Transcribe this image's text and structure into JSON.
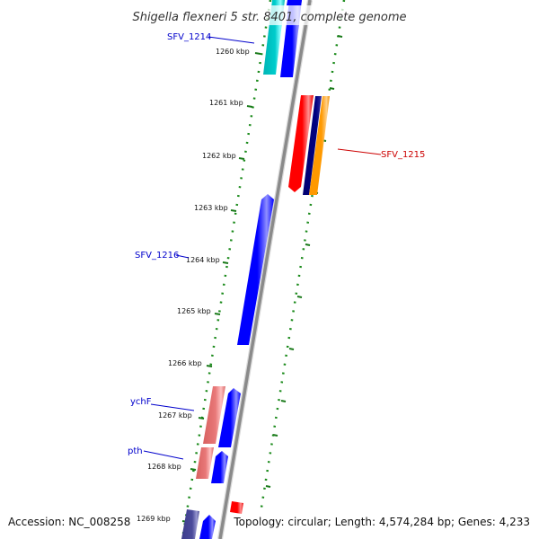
{
  "title": "Shigella flexneri 5 str. 8401, complete genome",
  "footer": {
    "accession": "Accession: NC_008258",
    "topology": "Topology: circular; Length: 4,574,284 bp; Genes: 4,233"
  },
  "ticks": [
    {
      "id": "tick-1260",
      "label": "1260 kbp"
    },
    {
      "id": "tick-1261",
      "label": "1261 kbp"
    },
    {
      "id": "tick-1262",
      "label": "1262 kbp"
    },
    {
      "id": "tick-1263",
      "label": "1263 kbp"
    },
    {
      "id": "tick-1264",
      "label": "1264 kbp"
    },
    {
      "id": "tick-1265",
      "label": "1265 kbp"
    },
    {
      "id": "tick-1266",
      "label": "1266 kbp"
    },
    {
      "id": "tick-1267",
      "label": "1267 kbp"
    },
    {
      "id": "tick-1268",
      "label": "1268 kbp"
    },
    {
      "id": "tick-1269",
      "label": "1269 kbp"
    }
  ],
  "gene_labels": [
    {
      "id": "sfv-1214",
      "text": "SFV_1214",
      "color": "#0000cc"
    },
    {
      "id": "sfv-1215",
      "text": "SFV_1215",
      "color": "#cc0000"
    },
    {
      "id": "sfv-1216",
      "text": "SFV_1216",
      "color": "#0000cc"
    },
    {
      "id": "ychf",
      "text": "ychF",
      "color": "#0000cc"
    },
    {
      "id": "pth",
      "text": "pth",
      "color": "#0000cc"
    }
  ],
  "colors": {
    "backbone": "#8a8a8a",
    "gc_dots": "#1a8a1a",
    "tick": "#1a7a1a",
    "cds_forward": "#0000ff",
    "cds_reverse": "#ff0000",
    "cds_cyan": "#00c8c8",
    "cds_orange": "#ff9900",
    "cds_navy": "#000080",
    "cds_salmon": "#e87878",
    "cds_slate": "#4b4b9b"
  }
}
